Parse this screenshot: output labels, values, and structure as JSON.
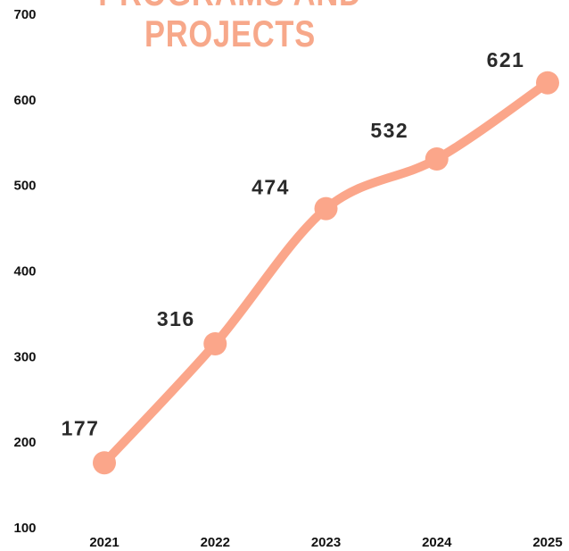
{
  "chart_data": {
    "type": "line",
    "title_lines": [
      "PROGRAMS AND",
      "PROJECTS"
    ],
    "categories": [
      "2021",
      "2022",
      "2023",
      "2024",
      "2025"
    ],
    "series": [
      {
        "color": "#fba68a",
        "values": [
          177,
          316,
          474,
          532,
          621
        ]
      }
    ],
    "ylim": [
      100,
      700
    ],
    "yticks": [
      100,
      200,
      300,
      400,
      500,
      600,
      700
    ],
    "grid": false
  }
}
